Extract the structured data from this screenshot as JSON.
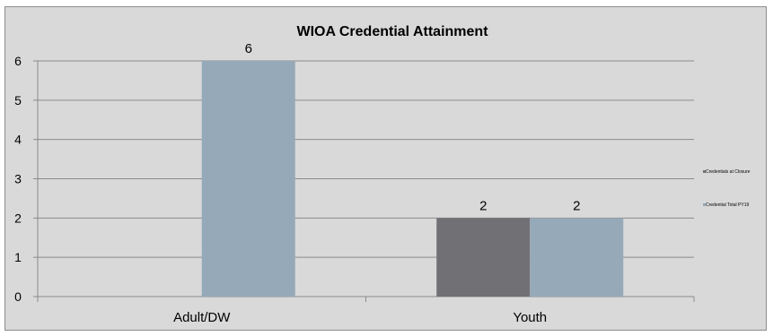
{
  "chart_data": {
    "type": "bar",
    "title": "WIOA Credential Attainment",
    "categories": [
      "Adult/DW",
      "Youth"
    ],
    "series": [
      {
        "name": "Credentials at Closure",
        "values": [
          0,
          2
        ],
        "color": "#717075"
      },
      {
        "name": "Credential Total PY19",
        "values": [
          6,
          2
        ],
        "color": "#96a9b8"
      }
    ],
    "ylim": [
      0,
      6
    ],
    "yticks": [
      0,
      1,
      2,
      3,
      4,
      5,
      6
    ],
    "data_labels": [
      [
        null,
        "2"
      ],
      [
        "6",
        "2"
      ]
    ],
    "grid": true,
    "legend_position": "right",
    "background": "#d9d9d9"
  }
}
